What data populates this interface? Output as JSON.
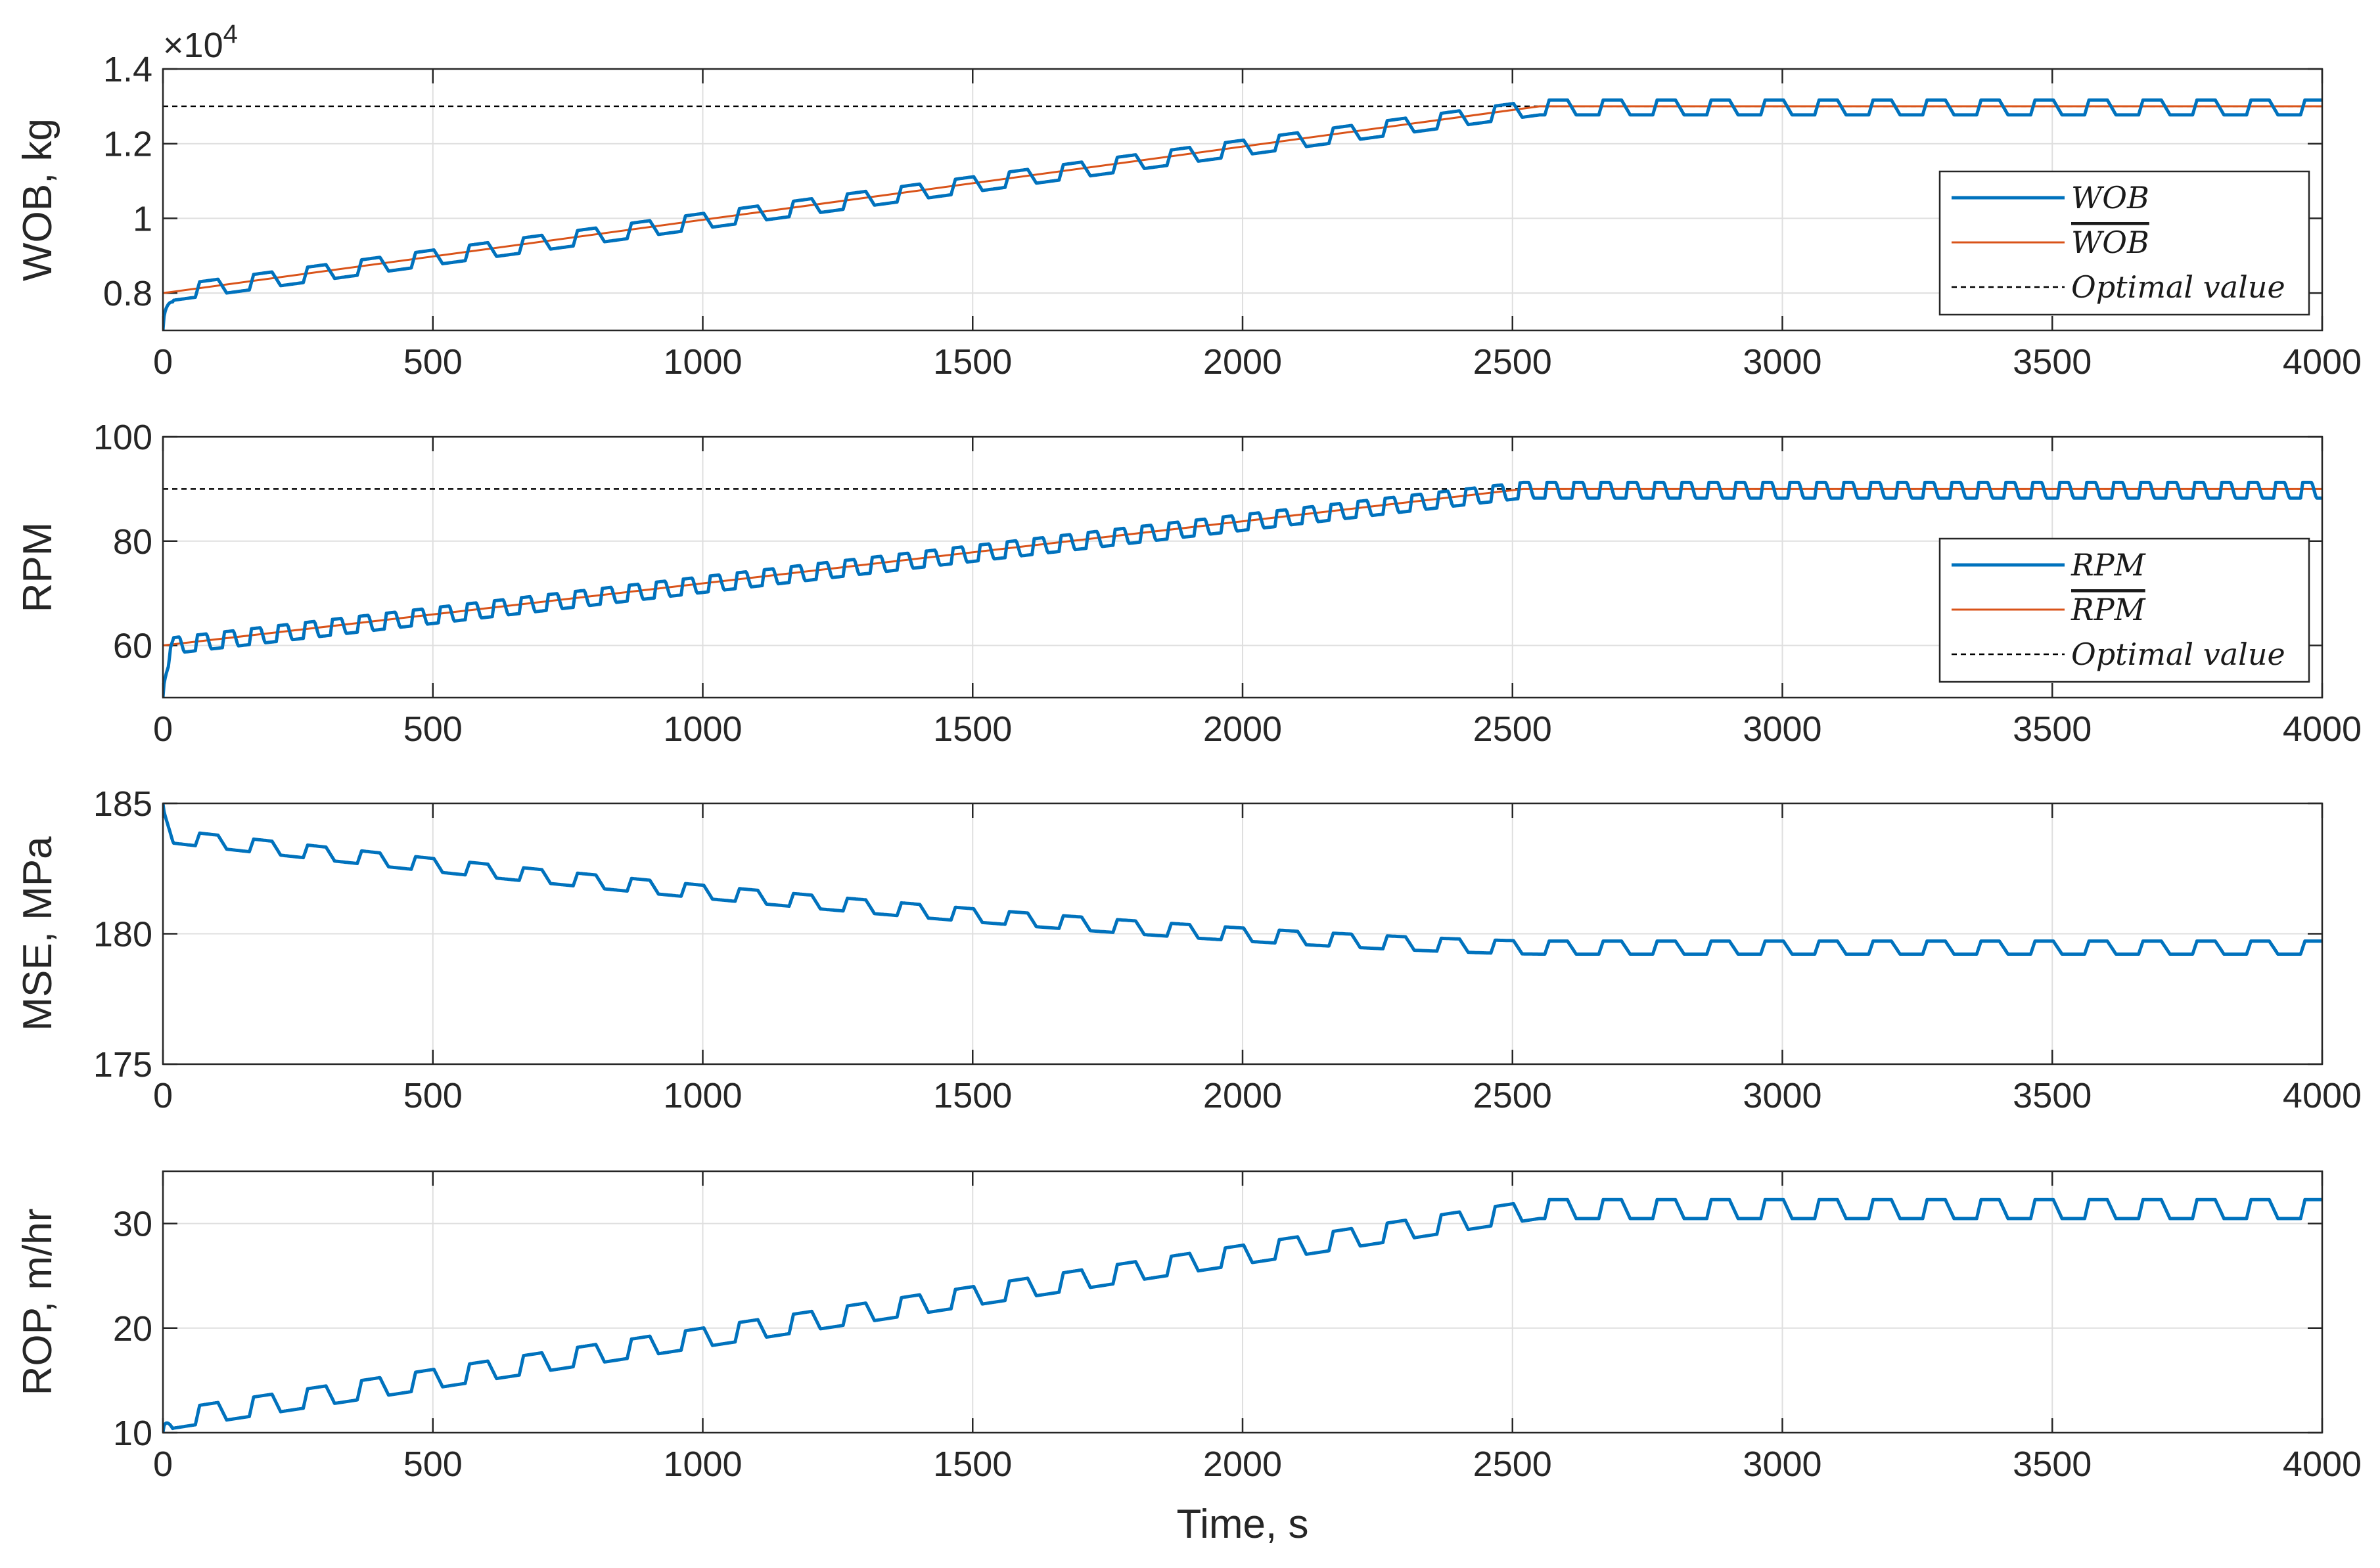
{
  "chart_data": [
    {
      "type": "line",
      "ylabel": "WOB, kg",
      "exponent_label": "×10",
      "exponent_power": "4",
      "xlim": [
        0,
        4000
      ],
      "ylim": [
        0.7,
        1.4
      ],
      "yticks": [
        0.8,
        1,
        1.2,
        1.4
      ],
      "ytick_labels": [
        "0.8",
        "1",
        "1.2",
        "1.4"
      ],
      "xticks": [
        0,
        500,
        1000,
        1500,
        2000,
        2500,
        3000,
        3500,
        4000
      ],
      "xtick_labels": [
        "0",
        "500",
        "1000",
        "1500",
        "2000",
        "2500",
        "3000",
        "3500",
        "4000"
      ],
      "legend": {
        "entries": [
          "WOB",
          "WOB",
          "Optimal value"
        ],
        "overline": [
          false,
          true,
          false
        ],
        "placement": "right"
      },
      "optimal": 1.3,
      "series_params": {
        "kind": "ramp",
        "start": 0.8,
        "end": 1.3,
        "t_sat": 2550,
        "period": 100,
        "amp": 0.02,
        "offset_neg": 0.01,
        "mean_start": 0.8,
        "mean_end": 1.3,
        "init_dip": 0.7
      }
    },
    {
      "type": "line",
      "ylabel": "RPM",
      "xlim": [
        0,
        4000
      ],
      "ylim": [
        50,
        100
      ],
      "yticks": [
        60,
        80,
        100
      ],
      "ytick_labels": [
        "60",
        "80",
        "100"
      ],
      "xticks": [
        0,
        500,
        1000,
        1500,
        2000,
        2500,
        3000,
        3500,
        4000
      ],
      "xtick_labels": [
        "0",
        "500",
        "1000",
        "1500",
        "2000",
        "2500",
        "3000",
        "3500",
        "4000"
      ],
      "legend": {
        "entries": [
          "RPM",
          "RPM",
          "Optimal value"
        ],
        "overline": [
          false,
          true,
          false
        ],
        "placement": "right"
      },
      "optimal": 90,
      "series_params": {
        "kind": "ramp",
        "start": 60,
        "end": 90,
        "t_sat": 2520,
        "period": 50,
        "amp": 1.5,
        "offset_neg": 0.8,
        "mean_start": 60,
        "mean_end": 90,
        "init_dip": 50
      }
    },
    {
      "type": "line",
      "ylabel": "MSE, MPa",
      "xlim": [
        0,
        4000
      ],
      "ylim": [
        175,
        185
      ],
      "yticks": [
        175,
        180,
        185
      ],
      "ytick_labels": [
        "175",
        "180",
        "185"
      ],
      "xticks": [
        0,
        500,
        1000,
        1500,
        2000,
        2500,
        3000,
        3500,
        4000
      ],
      "xtick_labels": [
        "0",
        "500",
        "1000",
        "1500",
        "2000",
        "2500",
        "3000",
        "3500",
        "4000"
      ],
      "series_params": {
        "kind": "decay",
        "start": 183.8,
        "end": 179.5,
        "t_sat": 2550,
        "period": 100,
        "amp": 0.25,
        "offset_neg": 0.1,
        "init_peak": 185
      }
    },
    {
      "type": "line",
      "ylabel": "ROP, m/hr",
      "xlabel": "Time, s",
      "xlim": [
        0,
        4000
      ],
      "ylim": [
        10,
        35
      ],
      "yticks": [
        10,
        20,
        30
      ],
      "ytick_labels": [
        "10",
        "20",
        "30"
      ],
      "xticks": [
        0,
        500,
        1000,
        1500,
        2000,
        2500,
        3000,
        3500,
        4000
      ],
      "xtick_labels": [
        "0",
        "500",
        "1000",
        "1500",
        "2000",
        "2500",
        "3000",
        "3500",
        "4000"
      ],
      "series_params": {
        "kind": "ramp",
        "start": 11.3,
        "end": 31.5,
        "t_sat": 2550,
        "period": 100,
        "amp": 0.9,
        "offset_neg": 0.4,
        "init_dip": 10
      }
    }
  ],
  "colors": {
    "blue": "#0072BD",
    "orange": "#D95319",
    "black": "#000000"
  }
}
